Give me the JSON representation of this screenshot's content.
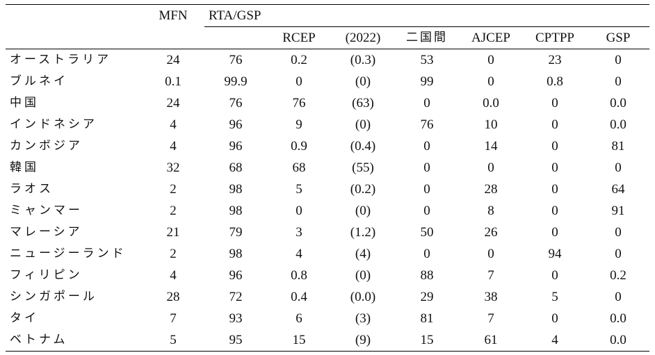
{
  "table": {
    "headers": {
      "mfn": "MFN",
      "rta_gsp": "RTA/GSP",
      "sub": [
        "RCEP",
        "(2022)",
        "二国間",
        "AJCEP",
        "CPTPP",
        "GSP"
      ]
    },
    "rows": [
      {
        "country": "オーストラリア",
        "values": [
          "24",
          "76",
          "0.2",
          "(0.3)",
          "53",
          "0",
          "23",
          "0"
        ]
      },
      {
        "country": "ブルネイ",
        "values": [
          "0.1",
          "99.9",
          "0",
          "(0)",
          "99",
          "0",
          "0.8",
          "0"
        ]
      },
      {
        "country": "中国",
        "values": [
          "24",
          "76",
          "76",
          "(63)",
          "0",
          "0.0",
          "0",
          "0.0"
        ]
      },
      {
        "country": "インドネシア",
        "values": [
          "4",
          "96",
          "9",
          "(0)",
          "76",
          "10",
          "0",
          "0.0"
        ]
      },
      {
        "country": "カンボジア",
        "values": [
          "4",
          "96",
          "0.9",
          "(0.4)",
          "0",
          "14",
          "0",
          "81"
        ]
      },
      {
        "country": "韓国",
        "values": [
          "32",
          "68",
          "68",
          "(55)",
          "0",
          "0",
          "0",
          "0"
        ]
      },
      {
        "country": "ラオス",
        "values": [
          "2",
          "98",
          "5",
          "(0.2)",
          "0",
          "28",
          "0",
          "64"
        ]
      },
      {
        "country": "ミャンマー",
        "values": [
          "2",
          "98",
          "0",
          "(0)",
          "0",
          "8",
          "0",
          "91"
        ]
      },
      {
        "country": "マレーシア",
        "values": [
          "21",
          "79",
          "3",
          "(1.2)",
          "50",
          "26",
          "0",
          "0"
        ]
      },
      {
        "country": "ニュージーランド",
        "values": [
          "2",
          "98",
          "4",
          "(4)",
          "0",
          "0",
          "94",
          "0"
        ]
      },
      {
        "country": "フィリピン",
        "values": [
          "4",
          "96",
          "0.8",
          "(0)",
          "88",
          "7",
          "0",
          "0.2"
        ]
      },
      {
        "country": "シンガポール",
        "values": [
          "28",
          "72",
          "0.4",
          "(0.0)",
          "29",
          "38",
          "5",
          "0"
        ]
      },
      {
        "country": "タイ",
        "values": [
          "7",
          "93",
          "6",
          "(3)",
          "81",
          "7",
          "0",
          "0.0"
        ]
      },
      {
        "country": "ベトナム",
        "values": [
          "5",
          "95",
          "15",
          "(9)",
          "15",
          "61",
          "4",
          "0.0"
        ]
      }
    ]
  }
}
